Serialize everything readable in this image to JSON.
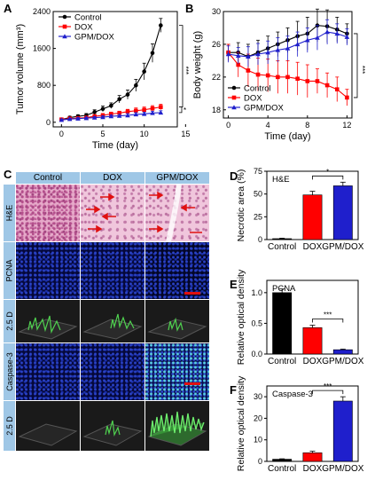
{
  "panels": {
    "A": "A",
    "B": "B",
    "C": "C",
    "D": "D",
    "E": "E",
    "F": "F"
  },
  "micro": {
    "columns": [
      "Control",
      "DOX",
      "GPM/DOX"
    ],
    "rows": [
      "H&E",
      "PCNA",
      "2.5 D",
      "Caspase-3",
      "2.5 D"
    ]
  },
  "colors": {
    "control": "#000000",
    "dox": "#ff0000",
    "gpm": "#1f1fcc",
    "header": "#9fc7e6"
  },
  "chart_data": [
    {
      "id": "A",
      "type": "line",
      "xlabel": "Time (day)",
      "ylabel": "Tumor volume (mm³)",
      "xlim": [
        -1,
        14
      ],
      "ylim": [
        -100,
        2400
      ],
      "xticks": [
        0,
        5,
        10,
        15
      ],
      "yticks": [
        0,
        800,
        1600,
        2400
      ],
      "yticks_labels": [
        "0",
        "800",
        "1600",
        "2400"
      ],
      "xticks_labels": [
        "0",
        "5",
        "10",
        "15"
      ],
      "legend": "top-left",
      "significance": [
        "***",
        "*"
      ],
      "x": [
        0,
        1,
        2,
        3,
        4,
        5,
        6,
        7,
        8,
        9,
        10,
        11,
        12
      ],
      "series": [
        {
          "name": "Control",
          "values": [
            60,
            100,
            130,
            150,
            220,
            290,
            360,
            500,
            600,
            800,
            1100,
            1500,
            2100
          ],
          "err": [
            20,
            30,
            30,
            40,
            50,
            60,
            60,
            80,
            100,
            130,
            180,
            200,
            150
          ]
        },
        {
          "name": "DOX",
          "values": [
            60,
            80,
            90,
            100,
            130,
            150,
            180,
            200,
            230,
            250,
            270,
            300,
            330
          ],
          "err": [
            20,
            20,
            20,
            30,
            30,
            40,
            40,
            40,
            50,
            60,
            60,
            60,
            60
          ]
        },
        {
          "name": "GPM/DOX",
          "values": [
            50,
            70,
            80,
            90,
            100,
            110,
            130,
            140,
            150,
            170,
            180,
            200,
            210
          ],
          "err": [
            20,
            20,
            20,
            20,
            20,
            30,
            30,
            30,
            40,
            40,
            40,
            40,
            40
          ]
        }
      ]
    },
    {
      "id": "B",
      "type": "line",
      "xlabel": "Time (day)",
      "ylabel": "Body weight (g)",
      "xlim": [
        -0.5,
        12.5
      ],
      "ylim": [
        17,
        30
      ],
      "xticks": [
        0,
        4,
        8,
        12
      ],
      "yticks": [
        18,
        22,
        26,
        30
      ],
      "xticks_labels": [
        "0",
        "4",
        "8",
        "12"
      ],
      "yticks_labels": [
        "18",
        "22",
        "26",
        "30"
      ],
      "legend": "bottom-left",
      "significance": [
        "***"
      ],
      "x": [
        0,
        1,
        2,
        3,
        4,
        5,
        6,
        7,
        8,
        9,
        10,
        11,
        12
      ],
      "series": [
        {
          "name": "Control",
          "values": [
            25.0,
            25.0,
            24.5,
            25.0,
            25.5,
            26.0,
            26.5,
            27.0,
            27.3,
            28.3,
            28.2,
            27.8,
            27.3
          ],
          "err": [
            1.0,
            1.2,
            1.5,
            1.5,
            1.5,
            1.5,
            1.5,
            1.8,
            2.0,
            2.0,
            2.0,
            1.5,
            1.2
          ]
        },
        {
          "name": "DOX",
          "values": [
            25.0,
            23.5,
            22.8,
            22.3,
            22.2,
            22.0,
            22.0,
            21.8,
            21.5,
            21.5,
            21.0,
            20.5,
            19.5
          ],
          "err": [
            1.0,
            1.5,
            2.0,
            2.0,
            2.0,
            2.0,
            2.0,
            2.0,
            2.0,
            1.5,
            1.5,
            1.5,
            1.0
          ]
        },
        {
          "name": "GPM/DOX",
          "values": [
            24.8,
            24.6,
            24.5,
            24.8,
            25.0,
            25.3,
            25.5,
            26.0,
            26.5,
            26.8,
            27.5,
            27.3,
            26.9
          ],
          "err": [
            1.0,
            1.0,
            1.2,
            1.3,
            1.4,
            1.5,
            1.5,
            1.5,
            1.5,
            1.5,
            1.5,
            1.2,
            1.0
          ]
        }
      ]
    },
    {
      "id": "D",
      "type": "bar",
      "title": "H&E",
      "ylabel": "Necrotic area (%)",
      "categories": [
        "Control",
        "DOX",
        "GPM/DOX"
      ],
      "values": [
        1,
        49,
        59
      ],
      "err": [
        0.5,
        4,
        4
      ],
      "ylim": [
        0,
        75
      ],
      "yticks": [
        0,
        25,
        50,
        75
      ],
      "yticks_labels": [
        "0",
        "25",
        "50",
        "75"
      ],
      "significance": [
        "*"
      ]
    },
    {
      "id": "E",
      "type": "bar",
      "title": "PCNA",
      "ylabel": "Relative optical density",
      "categories": [
        "Control",
        "DOX",
        "GPM/DOX"
      ],
      "values": [
        1.0,
        0.43,
        0.07
      ],
      "err": [
        0.06,
        0.04,
        0.01
      ],
      "ylim": [
        0,
        1.2
      ],
      "yticks": [
        0,
        0.5,
        1.0
      ],
      "yticks_labels": [
        "0.0",
        "0.5",
        "1.0"
      ],
      "significance": [
        "***"
      ]
    },
    {
      "id": "F",
      "type": "bar",
      "title": "Caspase-3",
      "ylabel": "Relative optical density",
      "categories": [
        "Control",
        "DOX",
        "GPM/DOX"
      ],
      "values": [
        1,
        4,
        28
      ],
      "err": [
        0.2,
        0.7,
        2
      ],
      "ylim": [
        0,
        35
      ],
      "yticks": [
        0,
        10,
        20,
        30
      ],
      "yticks_labels": [
        "0",
        "10",
        "20",
        "30"
      ],
      "significance": [
        "***"
      ]
    }
  ]
}
